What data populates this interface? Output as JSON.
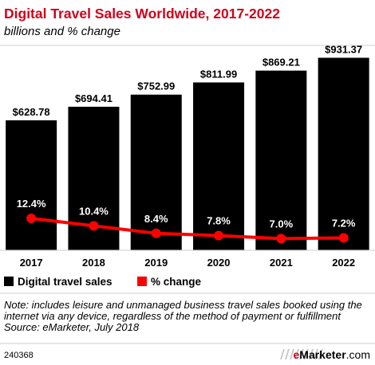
{
  "chart_data": {
    "type": "bar",
    "title": "Digital Travel Sales Worldwide, 2017-2022",
    "subtitle": "billions and % change",
    "categories": [
      "2017",
      "2018",
      "2019",
      "2020",
      "2021",
      "2022"
    ],
    "series": [
      {
        "name": "Digital travel sales",
        "type": "bar",
        "values": [
          628.78,
          694.41,
          752.99,
          811.99,
          869.21,
          931.37
        ],
        "labels": [
          "$628.78",
          "$694.41",
          "$752.99",
          "$811.99",
          "$869.21",
          "$931.37"
        ],
        "color": "#000000"
      },
      {
        "name": "% change",
        "type": "line",
        "values": [
          12.4,
          10.4,
          8.4,
          7.8,
          7.0,
          7.2
        ],
        "labels": [
          "12.4%",
          "10.4%",
          "8.4%",
          "7.8%",
          "7.0%",
          "7.2%"
        ],
        "color": "#ff0000"
      }
    ],
    "legend_position": "bottom-left",
    "grid": false
  },
  "footnote": {
    "note": "Note: includes leisure and unmanaged business travel sales booked using the internet via any device, regardless of the method of payment or fulfillment",
    "source": "Source: eMarketer, July 2018"
  },
  "chart_id": "240368",
  "brand": {
    "first": "e",
    "rest": "Marketer",
    "suffix": ".com"
  },
  "colors": {
    "title": "#d0021b",
    "accent": "#ff0000",
    "bars": "#000000"
  }
}
